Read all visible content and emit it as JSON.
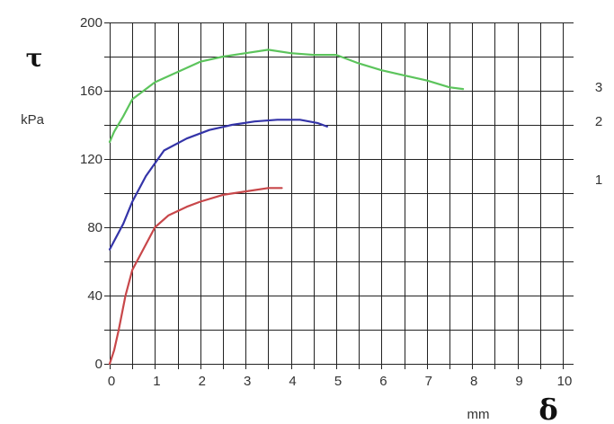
{
  "chart_data": {
    "type": "line",
    "y_symbol": "τ",
    "y_unit": "kPa",
    "x_symbol": "δ",
    "x_unit": "mm",
    "xlim": [
      0,
      10
    ],
    "ylim": [
      0,
      200
    ],
    "x_ticks": [
      "0",
      "1",
      "2",
      "3",
      "4",
      "5",
      "6",
      "7",
      "8",
      "9",
      "10"
    ],
    "y_ticks": [
      "0",
      "40",
      "80",
      "120",
      "160",
      "200"
    ],
    "grid": true,
    "series": [
      {
        "name": "1",
        "color": "#c8474a",
        "x": [
          0,
          0.1,
          0.2,
          0.35,
          0.5,
          0.7,
          1.0,
          1.3,
          1.7,
          2.0,
          2.5,
          3.0,
          3.5,
          3.8
        ],
        "y": [
          0,
          8,
          20,
          40,
          55,
          65,
          80,
          87,
          92,
          95,
          99,
          101,
          103,
          103
        ]
      },
      {
        "name": "2",
        "color": "#3434a8",
        "x": [
          0,
          0.1,
          0.3,
          0.5,
          0.8,
          1.2,
          1.7,
          2.2,
          2.7,
          3.2,
          3.7,
          4.2,
          4.6,
          4.8
        ],
        "y": [
          67,
          72,
          82,
          95,
          110,
          125,
          132,
          137,
          140,
          142,
          143,
          143,
          141,
          139
        ]
      },
      {
        "name": "3",
        "color": "#5cc45c",
        "x": [
          0,
          0.1,
          0.3,
          0.5,
          1.0,
          1.5,
          2.0,
          2.5,
          3.0,
          3.5,
          4.0,
          4.5,
          5.0,
          5.5,
          6.0,
          6.5,
          7.0,
          7.5,
          7.8
        ],
        "y": [
          130,
          136,
          145,
          155,
          165,
          171,
          177,
          180,
          182,
          184,
          182,
          181,
          181,
          176,
          172,
          169,
          166,
          162,
          161
        ]
      }
    ]
  }
}
